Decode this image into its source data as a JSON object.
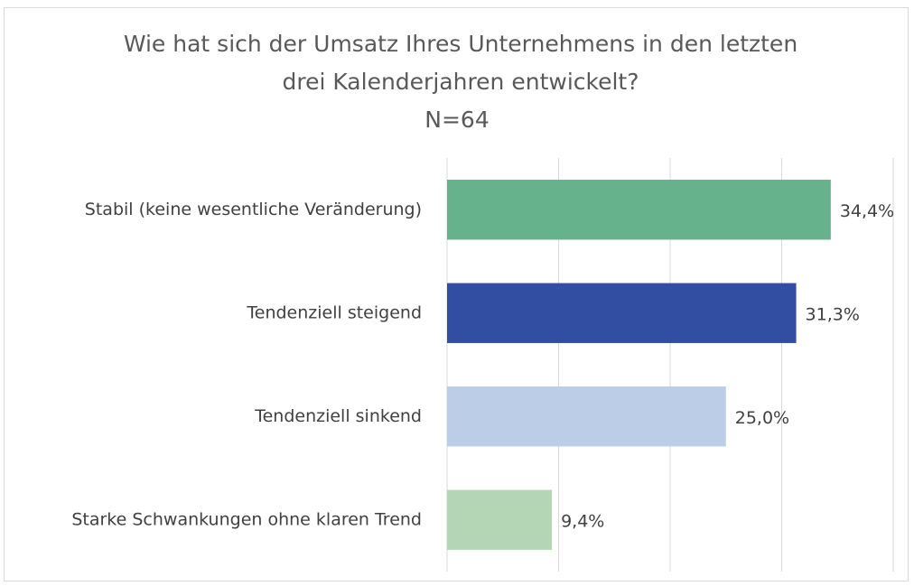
{
  "chart_data": {
    "type": "hbar",
    "title": "Wie hat sich der Umsatz Ihres Unternehmens in den letzten drei Kalenderjahren entwickelt?",
    "subtitle": "N=64",
    "categories": [
      "Stabil (keine wesentliche Veränderung)",
      "Tendenziell steigend",
      "Tendenziell sinkend",
      "Starke Schwankungen ohne klaren Trend"
    ],
    "values": [
      34.4,
      31.3,
      25.0,
      9.4
    ],
    "value_labels": [
      "34,4%",
      "31,3%",
      "25,0%",
      "9,4%"
    ],
    "colors": [
      "#66b28c",
      "#314ea3",
      "#bccde8",
      "#b5d6b5"
    ],
    "xlim": [
      0,
      40
    ],
    "xticks": [
      0,
      10,
      20,
      30,
      40
    ],
    "grid": true
  }
}
